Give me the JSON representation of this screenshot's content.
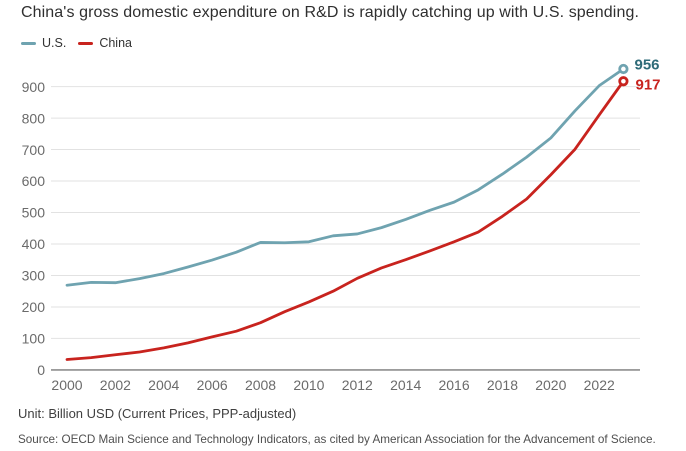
{
  "title": "China's gross domestic expenditure on R&D is rapidly catching up with U.S. spending.",
  "legend": {
    "us": "U.S.",
    "china": "China"
  },
  "footer": {
    "unit": "Unit: Billion USD (Current Prices, PPP-adjusted)",
    "source": "Source: OECD Main Science and Technology Indicators, as cited by American Association for the Advancement of Science."
  },
  "colors": {
    "us_line": "#6fa3b0",
    "us_label": "#2e6b78",
    "china_line": "#c8231e",
    "china_label": "#c8231e",
    "gridline": "#e2e2e2",
    "axis_line": "#8e8e8e",
    "tick_label": "#6b6b6b"
  },
  "chart_data": {
    "type": "line",
    "title": "China's gross domestic expenditure on R&D is rapidly catching up with U.S. spending.",
    "xlabel": "",
    "ylabel": "Billion USD (Current Prices, PPP-adjusted)",
    "x": [
      2000,
      2001,
      2002,
      2003,
      2004,
      2005,
      2006,
      2007,
      2008,
      2009,
      2010,
      2011,
      2012,
      2013,
      2014,
      2015,
      2016,
      2017,
      2018,
      2019,
      2020,
      2021,
      2022,
      2023
    ],
    "series": [
      {
        "name": "U.S.",
        "color": "#6fa3b0",
        "label_color": "#2e6b78",
        "values": [
          269,
          278,
          277,
          290,
          306,
          327,
          349,
          374,
          405,
          404,
          407,
          426,
          432,
          452,
          478,
          507,
          533,
          572,
          622,
          676,
          737,
          823,
          903,
          956
        ],
        "end_label": "956"
      },
      {
        "name": "China",
        "color": "#c8231e",
        "label_color": "#c8231e",
        "values": [
          33,
          39,
          48,
          57,
          70,
          86,
          105,
          123,
          150,
          185,
          216,
          250,
          291,
          324,
          350,
          378,
          407,
          438,
          488,
          543,
          620,
          701,
          810,
          917
        ],
        "end_label": "917"
      }
    ],
    "y_ticks": [
      0,
      100,
      200,
      300,
      400,
      500,
      600,
      700,
      800,
      900
    ],
    "x_ticks": [
      2000,
      2002,
      2004,
      2006,
      2008,
      2010,
      2012,
      2014,
      2016,
      2018,
      2020,
      2022
    ],
    "ylim": [
      0,
      960
    ],
    "grid": true,
    "legend_position": "top-left"
  }
}
